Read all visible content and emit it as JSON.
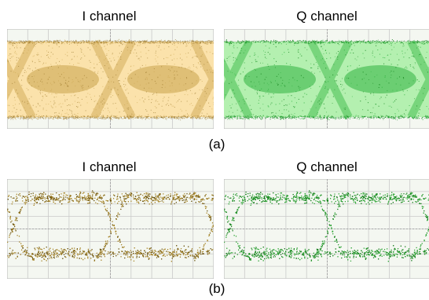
{
  "figure": {
    "rows": [
      {
        "caption": "(a)",
        "panels": [
          {
            "title": "I channel",
            "color": "#c9a24a",
            "light": "#fbe2ab",
            "dark": "#8d6a1e"
          },
          {
            "title": "Q channel",
            "color": "#2fb33f",
            "light": "#b4f0b0",
            "dark": "#16851f"
          }
        ],
        "style": "dense"
      },
      {
        "caption": "(b)",
        "panels": [
          {
            "title": "I channel",
            "color": "#a8862a",
            "light": "#d3b465",
            "dark": "#6c5410"
          },
          {
            "title": "Q channel",
            "color": "#2fa537",
            "light": "#6fd36f",
            "dark": "#157c1b"
          }
        ],
        "style": "sparse"
      }
    ],
    "grid_color": "#c9c9c9",
    "panel_background": "#f4f7f1"
  },
  "chart_data": {
    "type": "scatter",
    "grid": true,
    "series": []
  }
}
